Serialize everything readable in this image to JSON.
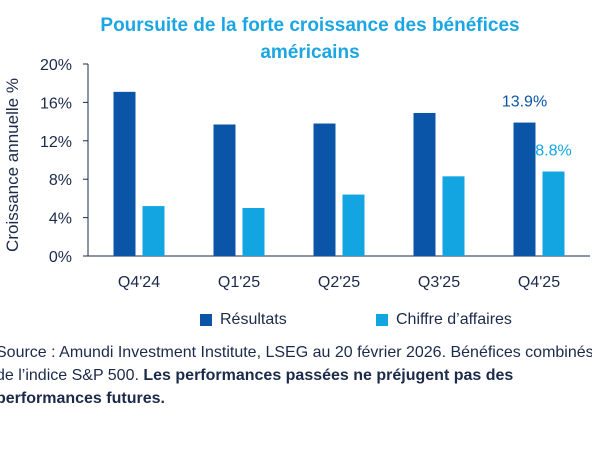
{
  "title": "Poursuite de la forte croissance des bénéfices américains",
  "legend": {
    "series1": "Résultats",
    "series2": "Chiffre d’affaires"
  },
  "source": {
    "text": "Source : Amundi Investment Institute, LSEG au 20 février 2026. Bénéfices combinés de l’indice S&P 500.",
    "bold": "Les performances passées ne préjugent pas des performances futures."
  },
  "colors": {
    "series1": "#0b55a8",
    "series2": "#12a5e2",
    "title": "#1ba6e3",
    "text": "#1b2a4a"
  },
  "chart_data": {
    "type": "bar",
    "title": "Poursuite de la forte croissance des bénéfices américains",
    "xlabel": "",
    "ylabel": "Croissance annuelle %",
    "ylim": [
      0,
      20
    ],
    "yticks": [
      "0%",
      "4%",
      "8%",
      "12%",
      "16%",
      "20%"
    ],
    "categories": [
      "Q4'24",
      "Q1'25",
      "Q2'25",
      "Q3'25",
      "Q4'25"
    ],
    "series": [
      {
        "name": "Résultats",
        "values": [
          17.1,
          13.7,
          13.8,
          14.9,
          13.9
        ]
      },
      {
        "name": "Chiffre d’affaires",
        "values": [
          5.2,
          5.0,
          6.4,
          8.3,
          8.8
        ]
      }
    ],
    "data_labels": [
      {
        "series": 0,
        "index": 4,
        "text": "13.9%"
      },
      {
        "series": 1,
        "index": 4,
        "text": "8.8%"
      }
    ],
    "legend_position": "bottom",
    "grid": false
  }
}
